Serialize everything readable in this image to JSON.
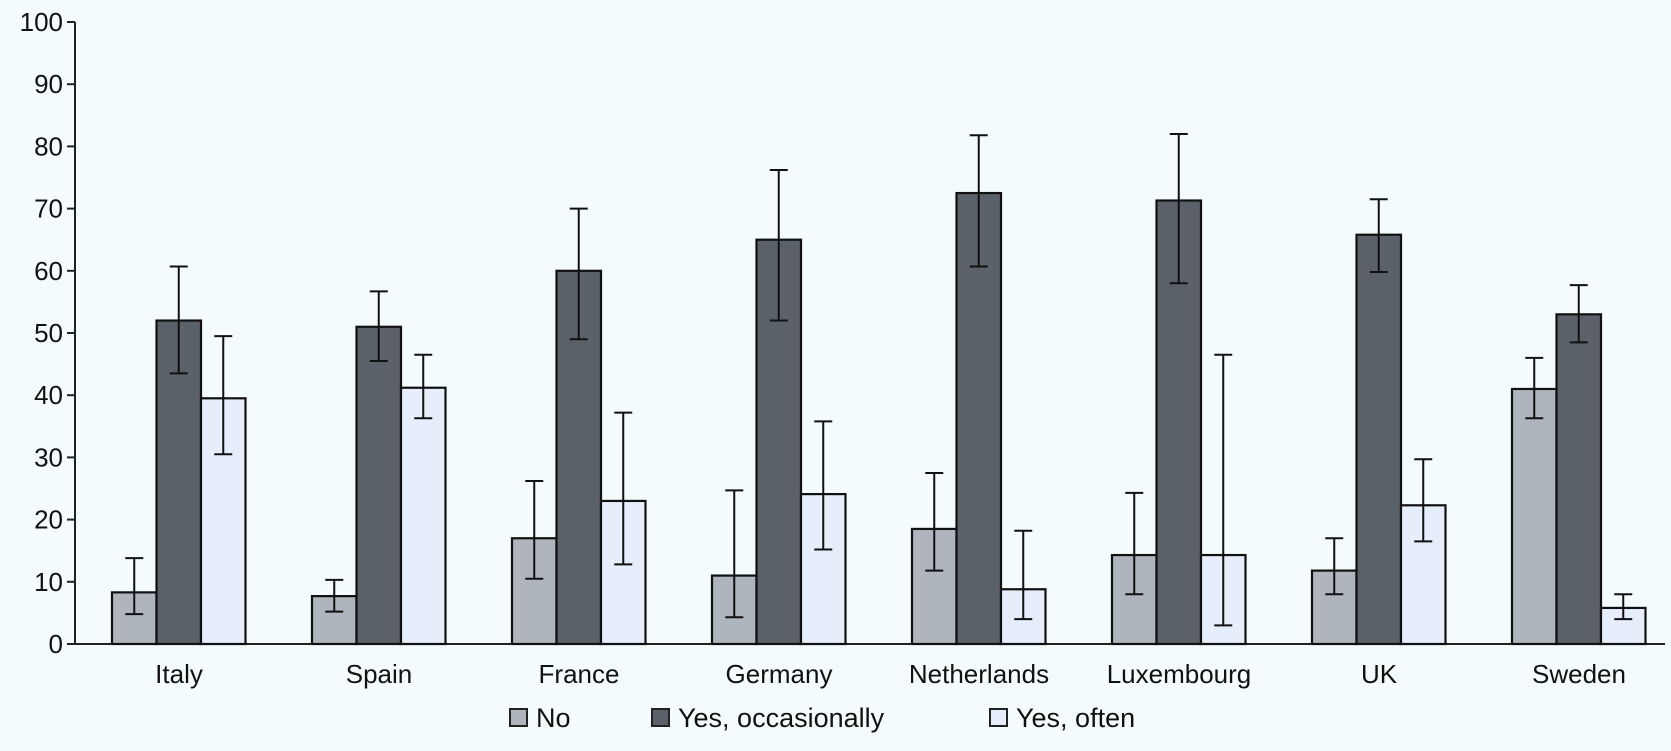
{
  "chart_data": {
    "type": "bar",
    "categories": [
      "Italy",
      "Spain",
      "France",
      "Germany",
      "Netherlands",
      "Luxembourg",
      "UK",
      "Sweden"
    ],
    "series": [
      {
        "name": "No",
        "color": "#aeb5bd",
        "values": [
          8.3,
          7.7,
          17,
          11,
          18.5,
          14.3,
          11.8,
          41
        ],
        "error_low": [
          4.8,
          5.2,
          10.5,
          4.3,
          11.8,
          8,
          8,
          36.3
        ],
        "error_high": [
          13.8,
          10.3,
          26.2,
          24.7,
          27.5,
          24.3,
          17,
          46
        ]
      },
      {
        "name": "Yes, occasionally",
        "color": "#5b6168",
        "values": [
          52,
          51,
          60,
          65,
          72.5,
          71.3,
          65.8,
          53
        ],
        "error_low": [
          43.5,
          45.5,
          49,
          52,
          60.7,
          58,
          59.8,
          48.5
        ],
        "error_high": [
          60.7,
          56.7,
          70,
          76.2,
          81.8,
          82,
          71.5,
          57.7
        ]
      },
      {
        "name": "Yes, often",
        "color": "#e6edfb",
        "values": [
          39.5,
          41.2,
          23,
          24.1,
          8.8,
          14.3,
          22.3,
          5.8
        ],
        "error_low": [
          30.5,
          36.3,
          12.8,
          15.2,
          4,
          3,
          16.5,
          4
        ],
        "error_high": [
          49.5,
          46.5,
          37.2,
          35.8,
          18.2,
          46.5,
          29.7,
          8
        ]
      }
    ],
    "ylim": [
      0,
      100
    ],
    "yticks": [
      "0",
      "10",
      "20",
      "30",
      "40",
      "50",
      "60",
      "70",
      "80",
      "90",
      "100"
    ],
    "title": "",
    "xlabel": "",
    "ylabel": "",
    "grid": false,
    "legend_position": "bottom"
  }
}
